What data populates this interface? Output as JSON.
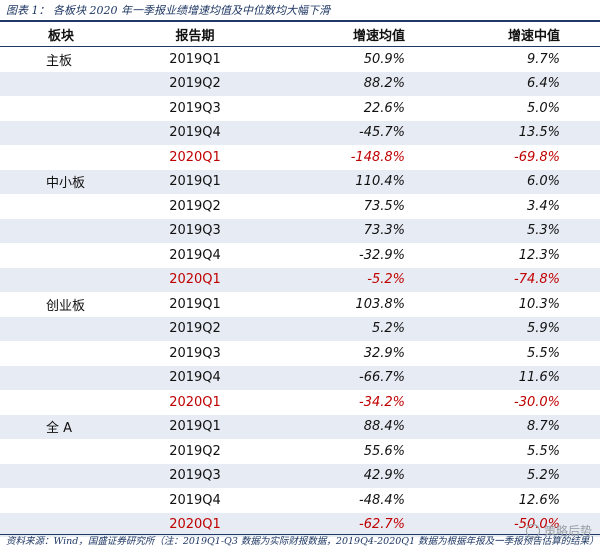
{
  "title": "图表 1：  各板块 2020 年一季报业绩增速均值及中位数均大幅下滑",
  "headers": [
    "板块",
    "报告期",
    "增速均值",
    "增速中值"
  ],
  "rows": [
    {
      "board": "主板",
      "period": "2019Q1",
      "mean": "50.9%",
      "median": "9.7%",
      "shade": false,
      "highlight": false
    },
    {
      "board": "",
      "period": "2019Q2",
      "mean": "88.2%",
      "median": "6.4%",
      "shade": true,
      "highlight": false
    },
    {
      "board": "",
      "period": "2019Q3",
      "mean": "22.6%",
      "median": "5.0%",
      "shade": false,
      "highlight": false
    },
    {
      "board": "",
      "period": "2019Q4",
      "mean": "-45.7%",
      "median": "13.5%",
      "shade": true,
      "highlight": false
    },
    {
      "board": "",
      "period": "2020Q1",
      "mean": "-148.8%",
      "median": "-69.8%",
      "shade": false,
      "highlight": true
    },
    {
      "board": "中小板",
      "period": "2019Q1",
      "mean": "110.4%",
      "median": "6.0%",
      "shade": true,
      "highlight": false
    },
    {
      "board": "",
      "period": "2019Q2",
      "mean": "73.5%",
      "median": "3.4%",
      "shade": false,
      "highlight": false
    },
    {
      "board": "",
      "period": "2019Q3",
      "mean": "73.3%",
      "median": "5.3%",
      "shade": true,
      "highlight": false
    },
    {
      "board": "",
      "period": "2019Q4",
      "mean": "-32.9%",
      "median": "12.3%",
      "shade": false,
      "highlight": false
    },
    {
      "board": "",
      "period": "2020Q1",
      "mean": "-5.2%",
      "median": "-74.8%",
      "shade": true,
      "highlight": true
    },
    {
      "board": "创业板",
      "period": "2019Q1",
      "mean": "103.8%",
      "median": "10.3%",
      "shade": false,
      "highlight": false
    },
    {
      "board": "",
      "period": "2019Q2",
      "mean": "5.2%",
      "median": "5.9%",
      "shade": true,
      "highlight": false
    },
    {
      "board": "",
      "period": "2019Q3",
      "mean": "32.9%",
      "median": "5.5%",
      "shade": false,
      "highlight": false
    },
    {
      "board": "",
      "period": "2019Q4",
      "mean": "-66.7%",
      "median": "11.6%",
      "shade": true,
      "highlight": false
    },
    {
      "board": "",
      "period": "2020Q1",
      "mean": "-34.2%",
      "median": "-30.0%",
      "shade": false,
      "highlight": true
    },
    {
      "board": "全 A",
      "period": "2019Q1",
      "mean": "88.4%",
      "median": "8.7%",
      "shade": true,
      "highlight": false
    },
    {
      "board": "",
      "period": "2019Q2",
      "mean": "55.6%",
      "median": "5.5%",
      "shade": false,
      "highlight": false
    },
    {
      "board": "",
      "period": "2019Q3",
      "mean": "42.9%",
      "median": "5.2%",
      "shade": true,
      "highlight": false
    },
    {
      "board": "",
      "period": "2019Q4",
      "mean": "-48.4%",
      "median": "12.6%",
      "shade": false,
      "highlight": false
    },
    {
      "board": "",
      "period": "2020Q1",
      "mean": "-62.7%",
      "median": "-50.0%",
      "shade": true,
      "highlight": true
    }
  ],
  "footer": "资料来源：Wind，国盛证券研究所（注：2019Q1-Q3 数据为实际财报数据，2019Q4-2020Q1 数据为根据年报及一季报预告估算的结果）",
  "watermark": "策略后势",
  "colors": {
    "accent": "#1f3864",
    "highlight": "#c00000",
    "shade": "#e7ebf3"
  }
}
